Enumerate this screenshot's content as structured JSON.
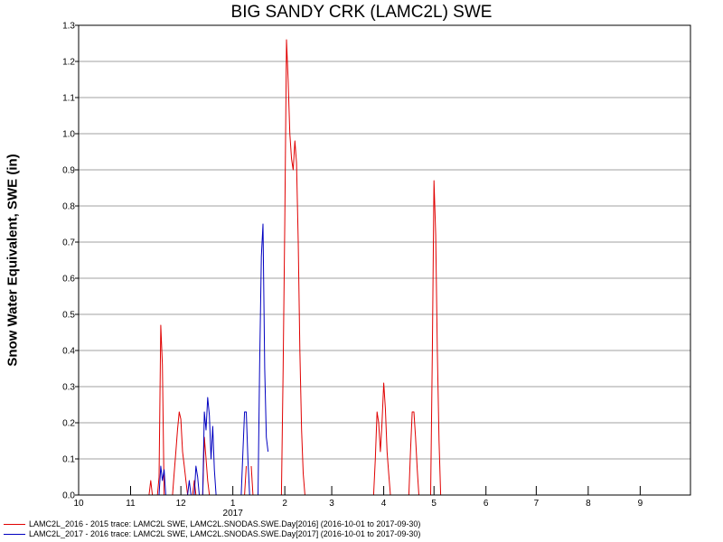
{
  "chart_data": {
    "type": "line",
    "title": "BIG SANDY CRK (LAMC2L) SWE",
    "ylabel": "Snow Water Equivalent, SWE (in)",
    "xlabel": "",
    "xlim": [
      "2016-10-01",
      "2017-10-01"
    ],
    "ylim": [
      0,
      1.3
    ],
    "grid": true,
    "legend_position": "bottom-left",
    "yticks": [
      "0.0",
      "0.1",
      "0.2",
      "0.3",
      "0.4",
      "0.5",
      "0.6",
      "0.7",
      "0.8",
      "0.9",
      "1.0",
      "1.1",
      "1.2",
      "1.3"
    ],
    "xticks": [
      {
        "date": "2016-10-01",
        "label": "10"
      },
      {
        "date": "2016-11-01",
        "label": "11"
      },
      {
        "date": "2016-12-01",
        "label": "12"
      },
      {
        "date": "2017-01-01",
        "label": "1"
      },
      {
        "date": "2017-02-01",
        "label": "2"
      },
      {
        "date": "2017-03-01",
        "label": "3"
      },
      {
        "date": "2017-04-01",
        "label": "4"
      },
      {
        "date": "2017-05-01",
        "label": "5"
      },
      {
        "date": "2017-06-01",
        "label": "6"
      },
      {
        "date": "2017-07-01",
        "label": "7"
      },
      {
        "date": "2017-08-01",
        "label": "8"
      },
      {
        "date": "2017-09-01",
        "label": "9"
      }
    ],
    "year_label": {
      "date": "2017-01-01",
      "label": "2017"
    },
    "series": [
      {
        "name": "LAMC2L_2016 - 2015 trace: LAMC2L SWE, LAMC2L.SNODAS.SWE.Day[2016] (2016-10-01 to 2017-09-30)",
        "color": "#e00000",
        "points": [
          [
            "2016-11-12",
            0.0
          ],
          [
            "2016-11-13",
            0.04
          ],
          [
            "2016-11-14",
            0.0
          ],
          [
            "2016-11-17",
            0.0
          ],
          [
            "2016-11-18",
            0.05
          ],
          [
            "2016-11-19",
            0.47
          ],
          [
            "2016-11-20",
            0.36
          ],
          [
            "2016-11-21",
            0.0
          ],
          [
            "2016-11-26",
            0.0
          ],
          [
            "2016-11-27",
            0.06
          ],
          [
            "2016-11-28",
            0.12
          ],
          [
            "2016-11-29",
            0.18
          ],
          [
            "2016-11-30",
            0.23
          ],
          [
            "2016-12-01",
            0.21
          ],
          [
            "2016-12-02",
            0.12
          ],
          [
            "2016-12-03",
            0.08
          ],
          [
            "2016-12-04",
            0.04
          ],
          [
            "2016-12-05",
            0.0
          ],
          [
            "2016-12-08",
            0.0
          ],
          [
            "2016-12-09",
            0.04
          ],
          [
            "2016-12-10",
            0.0
          ],
          [
            "2016-12-14",
            0.0
          ],
          [
            "2016-12-15",
            0.16
          ],
          [
            "2016-12-16",
            0.1
          ],
          [
            "2016-12-17",
            0.04
          ],
          [
            "2016-12-18",
            0.0
          ],
          [
            "2017-01-08",
            0.0
          ],
          [
            "2017-01-09",
            0.08
          ],
          [
            "2017-01-12",
            0.08
          ],
          [
            "2017-01-13",
            0.0
          ],
          [
            "2017-01-30",
            0.0
          ],
          [
            "2017-01-31",
            0.35
          ],
          [
            "2017-02-01",
            0.75
          ],
          [
            "2017-02-02",
            1.26
          ],
          [
            "2017-02-03",
            1.15
          ],
          [
            "2017-02-04",
            1.0
          ],
          [
            "2017-02-05",
            0.93
          ],
          [
            "2017-02-06",
            0.9
          ],
          [
            "2017-02-07",
            0.98
          ],
          [
            "2017-02-08",
            0.92
          ],
          [
            "2017-02-09",
            0.7
          ],
          [
            "2017-02-10",
            0.4
          ],
          [
            "2017-02-11",
            0.18
          ],
          [
            "2017-02-12",
            0.06
          ],
          [
            "2017-02-13",
            0.0
          ],
          [
            "2017-03-26",
            0.0
          ],
          [
            "2017-03-27",
            0.1
          ],
          [
            "2017-03-28",
            0.23
          ],
          [
            "2017-03-29",
            0.2
          ],
          [
            "2017-03-30",
            0.12
          ],
          [
            "2017-03-31",
            0.2
          ],
          [
            "2017-04-01",
            0.31
          ],
          [
            "2017-04-02",
            0.24
          ],
          [
            "2017-04-03",
            0.12
          ],
          [
            "2017-04-04",
            0.06
          ],
          [
            "2017-04-05",
            0.0
          ],
          [
            "2017-04-16",
            0.0
          ],
          [
            "2017-04-17",
            0.12
          ],
          [
            "2017-04-18",
            0.23
          ],
          [
            "2017-04-19",
            0.23
          ],
          [
            "2017-04-20",
            0.16
          ],
          [
            "2017-04-21",
            0.07
          ],
          [
            "2017-04-22",
            0.0
          ],
          [
            "2017-04-29",
            0.0
          ],
          [
            "2017-04-30",
            0.4
          ],
          [
            "2017-05-01",
            0.87
          ],
          [
            "2017-05-02",
            0.72
          ],
          [
            "2017-05-03",
            0.4
          ],
          [
            "2017-05-04",
            0.15
          ],
          [
            "2017-05-05",
            0.0
          ]
        ]
      },
      {
        "name": "LAMC2L_2017 - 2016 trace: LAMC2L SWE, LAMC2L.SNODAS.SWE.Day[2017] (2016-10-01 to 2017-09-30)",
        "color": "#0000c0",
        "points": [
          [
            "2016-11-18",
            0.0
          ],
          [
            "2016-11-19",
            0.08
          ],
          [
            "2016-11-20",
            0.04
          ],
          [
            "2016-11-21",
            0.07
          ],
          [
            "2016-11-22",
            0.0
          ],
          [
            "2016-12-05",
            0.0
          ],
          [
            "2016-12-06",
            0.04
          ],
          [
            "2016-12-07",
            0.0
          ],
          [
            "2016-12-09",
            0.0
          ],
          [
            "2016-12-10",
            0.08
          ],
          [
            "2016-12-11",
            0.05
          ],
          [
            "2016-12-12",
            0.0
          ],
          [
            "2016-12-14",
            0.0
          ],
          [
            "2016-12-15",
            0.23
          ],
          [
            "2016-12-16",
            0.18
          ],
          [
            "2016-12-17",
            0.27
          ],
          [
            "2016-12-18",
            0.22
          ],
          [
            "2016-12-19",
            0.1
          ],
          [
            "2016-12-20",
            0.19
          ],
          [
            "2016-12-21",
            0.07
          ],
          [
            "2016-12-22",
            0.0
          ],
          [
            "2017-01-04",
            0.0
          ],
          [
            "2017-01-06",
            0.0
          ],
          [
            "2017-01-07",
            0.12
          ],
          [
            "2017-01-08",
            0.23
          ],
          [
            "2017-01-09",
            0.23
          ],
          [
            "2017-01-10",
            0.1
          ],
          [
            "2017-01-11",
            0.0
          ],
          [
            "2017-01-16",
            0.0
          ],
          [
            "2017-01-17",
            0.36
          ],
          [
            "2017-01-18",
            0.66
          ],
          [
            "2017-01-19",
            0.75
          ],
          [
            "2017-01-20",
            0.35
          ],
          [
            "2017-01-21",
            0.16
          ],
          [
            "2017-01-22",
            0.12
          ]
        ]
      }
    ]
  }
}
